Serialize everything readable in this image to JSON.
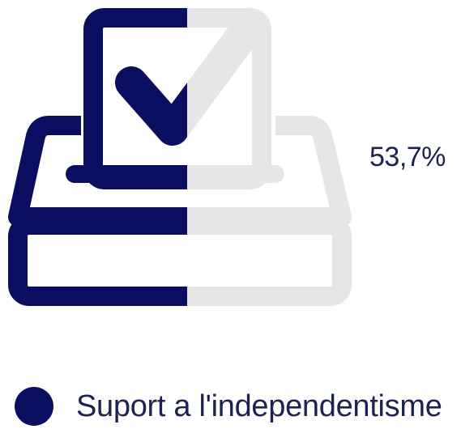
{
  "chart_data": {
    "type": "pictorial",
    "icon": "ballot-box-icon",
    "value_label": "53,7%",
    "series": [
      {
        "name": "Suport a l'independentisme",
        "value": 53.7,
        "color": "#0a0e60"
      }
    ],
    "remainder_color": "#e6e6e6"
  },
  "legend": {
    "label": "Suport a l'independentisme",
    "color": "#0a0e60"
  }
}
